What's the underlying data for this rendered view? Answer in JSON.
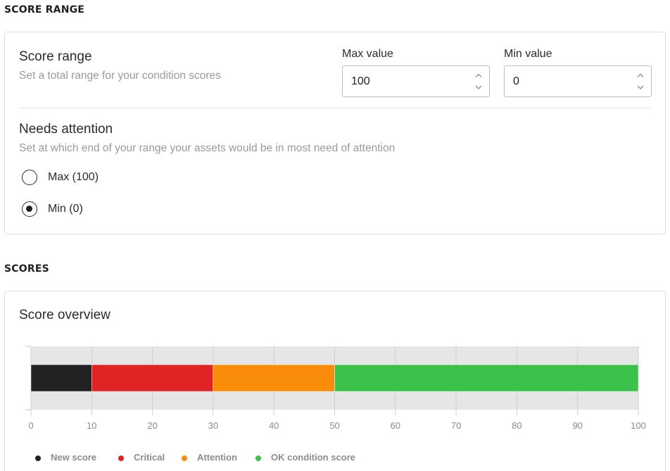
{
  "score_range_section": {
    "heading": "SCORE RANGE",
    "title": "Score range",
    "subtitle": "Set a total range for your condition scores",
    "max_field": {
      "label": "Max value",
      "value": "100"
    },
    "min_field": {
      "label": "Min value",
      "value": "0"
    },
    "attention": {
      "title": "Needs attention",
      "subtitle": "Set at which end of your range your assets would be in most need of attention",
      "options": [
        {
          "label": "Max (100)",
          "selected": false
        },
        {
          "label": "Min (0)",
          "selected": true
        }
      ]
    }
  },
  "scores_section": {
    "heading": "SCORES",
    "title": "Score overview"
  },
  "chart_data": {
    "type": "bar",
    "orientation": "horizontal-stacked",
    "title": "",
    "xlabel": "",
    "ylabel": "",
    "xlim": [
      0,
      100
    ],
    "xticks": [
      "0",
      "10",
      "20",
      "30",
      "40",
      "50",
      "60",
      "70",
      "80",
      "90",
      "100"
    ],
    "grid": true,
    "legend_position": "bottom-left",
    "series": [
      {
        "name": "New score",
        "from": 0,
        "to": 10,
        "color": "#222225"
      },
      {
        "name": "Critical",
        "from": 10,
        "to": 30,
        "color": "#e02424"
      },
      {
        "name": "Attention",
        "from": 30,
        "to": 50,
        "color": "#f98d0a"
      },
      {
        "name": "OK condition score",
        "from": 50,
        "to": 100,
        "color": "#3cc24a"
      }
    ]
  }
}
